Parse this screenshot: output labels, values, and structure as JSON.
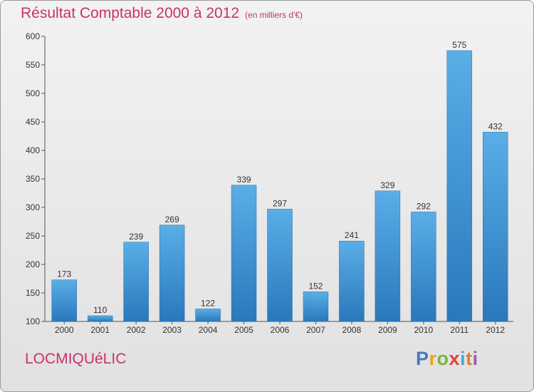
{
  "chart_data": {
    "type": "bar",
    "title": "Résultat Comptable 2000 à 2012",
    "subtitle": "(en milliers d'€)",
    "categories": [
      "2000",
      "2001",
      "2002",
      "2003",
      "2004",
      "2005",
      "2006",
      "2007",
      "2008",
      "2009",
      "2010",
      "2011",
      "2012"
    ],
    "values": [
      173,
      110,
      239,
      269,
      122,
      339,
      297,
      152,
      241,
      329,
      292,
      575,
      432
    ],
    "ylim": [
      100,
      600
    ],
    "yticks": [
      100,
      150,
      200,
      250,
      300,
      350,
      400,
      450,
      500,
      550,
      600
    ],
    "grid": false,
    "bar_color": "#3a8fd6"
  },
  "commune": "LOCMIQUéLIC",
  "logo": {
    "letters": [
      "P",
      "r",
      "o",
      "x",
      "i",
      "t",
      "i"
    ],
    "colors": [
      "#4a78c0",
      "#e8a325",
      "#7cb342",
      "#d8453b",
      "#4aa8d8",
      "#e87b2c",
      "#9a5bb0"
    ]
  }
}
